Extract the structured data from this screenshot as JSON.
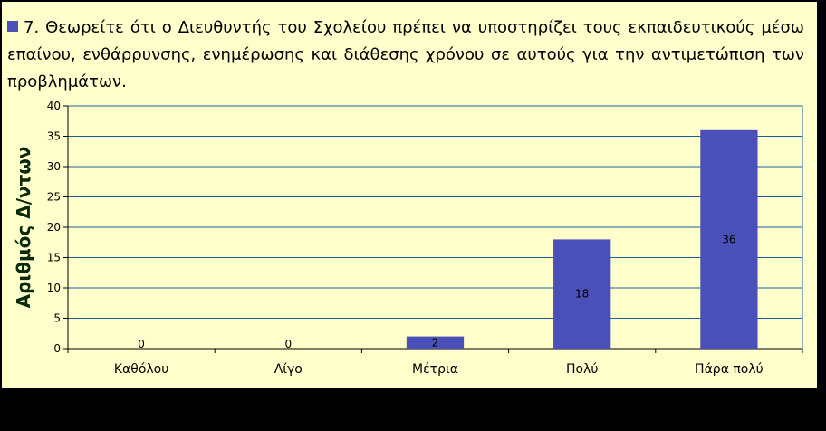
{
  "chart_data": {
    "type": "bar",
    "title": "7.  Θεωρείτε ότι  ο Διευθυντής του Σχολείου πρέπει να υποστηρίζει τους εκπαιδευτικούς μέσω επαίνου,  ενθάρρυνσης,  ενημέρωσης και διάθεσης χρόνου σε αυτούς για την αντιμετώπιση των προβλημάτων.",
    "ylabel": "Αριθμός Δ/ντων",
    "xlabel": "",
    "categories": [
      "Καθόλου",
      "Λίγο",
      "Μέτρια",
      "Πολύ",
      "Πάρα πολύ"
    ],
    "values": [
      0,
      0,
      2,
      18,
      36
    ],
    "ylim": [
      0,
      40
    ],
    "yticks": [
      0,
      5,
      10,
      15,
      20,
      25,
      30,
      35,
      40
    ],
    "grid": true,
    "legend": "top-left",
    "bar_color": "#4b4fb8",
    "plot_background": "#ffffcc",
    "gridline_color": "#1f5f9f"
  }
}
